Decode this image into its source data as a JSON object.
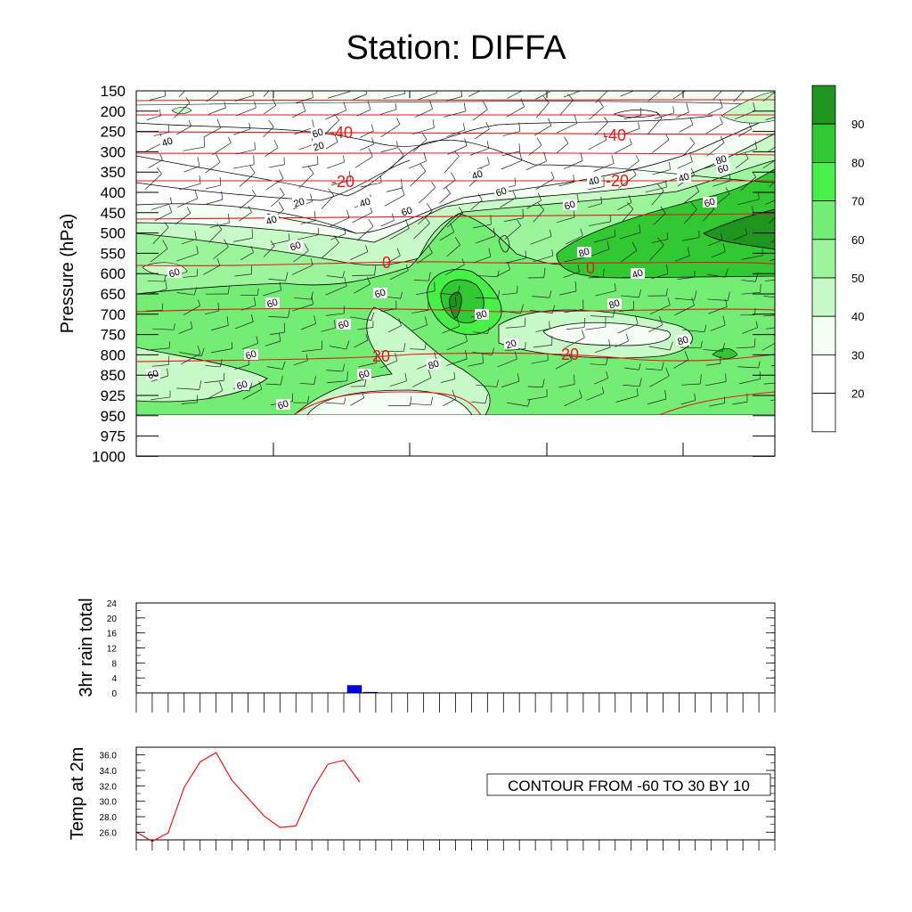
{
  "title": "Station: DIFFA",
  "colors": {
    "fill_levels": [
      "#ffffff",
      "#ffffff",
      "#ffffff",
      "#ffffff",
      "#f2fff2",
      "#c8fac8",
      "#9bf59b",
      "#73ed73",
      "#47f047",
      "#32c832",
      "#1e961e"
    ],
    "temperature_contour": "#e31a1c",
    "rain_bar": "#0000ee",
    "temp_line": "#e31a1c"
  },
  "chart_data": [
    {
      "type": "heatmap",
      "name": "cross-section",
      "ylabel": "Pressure (hPa)",
      "y_ticks": [
        "150",
        "200",
        "250",
        "300",
        "350",
        "400",
        "450",
        "500",
        "550",
        "600",
        "650",
        "700",
        "750",
        "800",
        "850",
        "925",
        "950",
        "975",
        "1000"
      ],
      "colorbar": {
        "labels": [
          "20",
          "30",
          "40",
          "50",
          "60",
          "70",
          "80",
          "90"
        ]
      },
      "humidity_contour_labels": [
        "40",
        "20",
        "20",
        "40",
        "40",
        "40",
        "60",
        "60",
        "60",
        "60",
        "60",
        "60",
        "60",
        "60",
        "60",
        "60",
        "60",
        "60",
        "60",
        "80",
        "80",
        "80",
        "80",
        "80",
        "20",
        "40",
        "60",
        "60",
        "40",
        "40",
        "60",
        "80"
      ],
      "temperature_contour_labels": [
        "-40",
        "-40",
        "-20",
        "-20",
        "0",
        "0",
        "20",
        "20"
      ],
      "wind_barbs": true
    },
    {
      "type": "bar",
      "name": "3hr rain total",
      "ylabel": "3hr rain total",
      "ylim": [
        0,
        24
      ],
      "y_ticks": [
        "0",
        "4",
        "8",
        "12",
        "16",
        "20",
        "24"
      ],
      "n_slots": 40,
      "values": [
        0,
        0,
        0,
        0,
        0,
        0,
        0,
        0,
        0,
        0,
        0,
        0,
        0,
        2,
        0.2,
        0,
        0,
        0,
        0,
        0,
        0,
        0,
        0,
        0,
        0,
        0,
        0,
        0,
        0,
        0,
        0,
        0,
        0,
        0,
        0,
        0,
        0,
        0,
        0,
        0
      ]
    },
    {
      "type": "line",
      "name": "Temp at 2m",
      "ylabel": "Temp at 2m",
      "ylim": [
        25,
        37
      ],
      "y_ticks": [
        "26.0",
        "28.0",
        "30.0",
        "32.0",
        "34.0",
        "36.0"
      ],
      "values": [
        26.0,
        24.8,
        25.9,
        31.8,
        35.1,
        36.3,
        32.7,
        30.4,
        28.1,
        26.6,
        26.8,
        31.4,
        34.8,
        35.3,
        32.5
      ],
      "annotation": "CONTOUR FROM -60 TO 30 BY 10"
    }
  ]
}
